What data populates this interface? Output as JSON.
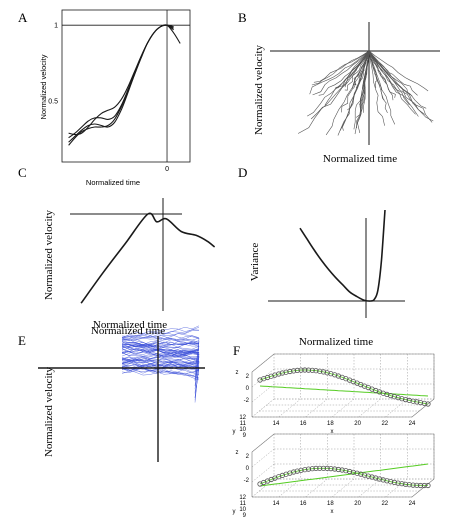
{
  "panel_letters": {
    "A": "A",
    "B": "B",
    "C": "C",
    "D": "D",
    "E": "E",
    "F": "F"
  },
  "colors": {
    "ink": "#1a1a1a",
    "grey_trace": "#555555",
    "blue_trace": "#3b4fd8",
    "green_fit": "#55cc22",
    "marker": "#555555",
    "grid": "#9a9a9a"
  },
  "chart_data": [
    {
      "panel": "A",
      "type": "line",
      "xlabel": "Normalized time",
      "ylabel": "Normalized velocity",
      "x_ticks": [
        "0"
      ],
      "y_ticks": [
        "1",
        "0.5"
      ],
      "xlim": [
        -1.6,
        0.35
      ],
      "ylim": [
        0.1,
        1.1
      ],
      "series": [
        {
          "x": [
            -1.5,
            -1.4,
            -1.3,
            -1.2,
            -1.1,
            -1.0,
            -0.9,
            -0.8,
            -0.7,
            -0.6,
            -0.5,
            -0.4,
            -0.3,
            -0.2,
            -0.1,
            0.0,
            0.1
          ],
          "y": [
            0.23,
            0.27,
            0.31,
            0.34,
            0.35,
            0.34,
            0.33,
            0.36,
            0.44,
            0.55,
            0.67,
            0.78,
            0.88,
            0.95,
            0.99,
            1.0,
            0.97
          ]
        },
        {
          "x": [
            -1.5,
            -1.4,
            -1.3,
            -1.2,
            -1.1,
            -1.0,
            -0.9,
            -0.8,
            -0.7,
            -0.6,
            -0.5,
            -0.4,
            -0.3,
            -0.2,
            -0.1,
            0.0,
            0.1
          ],
          "y": [
            0.29,
            0.28,
            0.29,
            0.33,
            0.38,
            0.42,
            0.44,
            0.46,
            0.51,
            0.59,
            0.69,
            0.79,
            0.88,
            0.95,
            0.99,
            1.0,
            0.99
          ]
        },
        {
          "x": [
            -1.5,
            -1.4,
            -1.3,
            -1.2,
            -1.1,
            -1.0,
            -0.9,
            -0.8,
            -0.7,
            -0.6,
            -0.5,
            -0.4,
            -0.3,
            -0.2,
            -0.1,
            0.0,
            0.1
          ],
          "y": [
            0.26,
            0.29,
            0.33,
            0.37,
            0.39,
            0.39,
            0.38,
            0.4,
            0.47,
            0.57,
            0.68,
            0.79,
            0.88,
            0.95,
            0.99,
            1.0,
            0.98
          ]
        },
        {
          "x": [
            -1.5,
            -1.4,
            -1.3,
            -1.2,
            -1.1,
            -1.0,
            -0.9,
            -0.8,
            -0.7,
            -0.6,
            -0.5,
            -0.4,
            -0.3,
            -0.2,
            -0.1,
            0.0,
            0.1,
            0.2
          ],
          "y": [
            0.21,
            0.26,
            0.3,
            0.32,
            0.33,
            0.33,
            0.34,
            0.38,
            0.46,
            0.56,
            0.67,
            0.78,
            0.88,
            0.95,
            0.99,
            1.0,
            0.95,
            0.88
          ]
        }
      ]
    },
    {
      "panel": "B",
      "type": "line",
      "xlabel": "Normalized time",
      "ylabel": "Normalized velocity",
      "description_series": "many individual normalized velocity profiles converging at the peak (0, 1)",
      "xlim": [
        -1,
        1
      ],
      "ylim": [
        -1,
        0.1
      ]
    },
    {
      "panel": "C",
      "type": "line",
      "xlabel": "Normalized time",
      "ylabel": "Normalized velocity",
      "xlim": [
        -1.1,
        1.1
      ],
      "ylim": [
        -1.0,
        0.1
      ],
      "series": [
        {
          "x": [
            -0.9,
            -0.6,
            -0.3,
            0.0,
            0.12,
            0.25,
            0.45,
            0.65,
            0.8,
            0.9
          ],
          "y": [
            -0.92,
            -0.6,
            -0.3,
            0.0,
            -0.08,
            -0.05,
            -0.18,
            -0.22,
            -0.28,
            -0.34
          ]
        }
      ]
    },
    {
      "panel": "D",
      "type": "line",
      "xlabel": "",
      "ylabel": "Variance",
      "xlim": [
        -1.1,
        0.4
      ],
      "ylim": [
        0,
        1.05
      ],
      "series": [
        {
          "x": [
            -1.0,
            -0.9,
            -0.8,
            -0.7,
            -0.6,
            -0.5,
            -0.4,
            -0.3,
            -0.2,
            -0.1,
            0.0,
            0.05,
            0.1,
            0.15,
            0.2
          ],
          "y": [
            0.8,
            0.68,
            0.56,
            0.45,
            0.35,
            0.26,
            0.18,
            0.1,
            0.05,
            0.01,
            0.0,
            0.02,
            0.12,
            0.45,
            1.0
          ]
        }
      ]
    },
    {
      "panel": "E",
      "type": "line",
      "xlabel": "Normalized time",
      "ylabel": "Normalized velocity",
      "description_series": "many blue single-trial velocity traces clustered near the top-right of the axes"
    },
    {
      "panel": "F",
      "type": "scatter",
      "title": "Normalized time",
      "subplots": [
        {
          "x_ticks": [
            "14",
            "16",
            "18",
            "20",
            "22",
            "24"
          ],
          "y_ticks": [
            "9",
            "10",
            "11",
            "12"
          ],
          "z_ticks": [
            "2",
            "0",
            "-2"
          ],
          "xlabel": "x",
          "ylabel": "y",
          "zlabel": "z"
        },
        {
          "x_ticks": [
            "14",
            "16",
            "18",
            "20",
            "22",
            "24"
          ],
          "y_ticks": [
            "9",
            "10",
            "11",
            "12"
          ],
          "z_ticks": [
            "2",
            "0",
            "-2"
          ],
          "xlabel": "x",
          "ylabel": "y",
          "zlabel": "z"
        }
      ]
    }
  ]
}
